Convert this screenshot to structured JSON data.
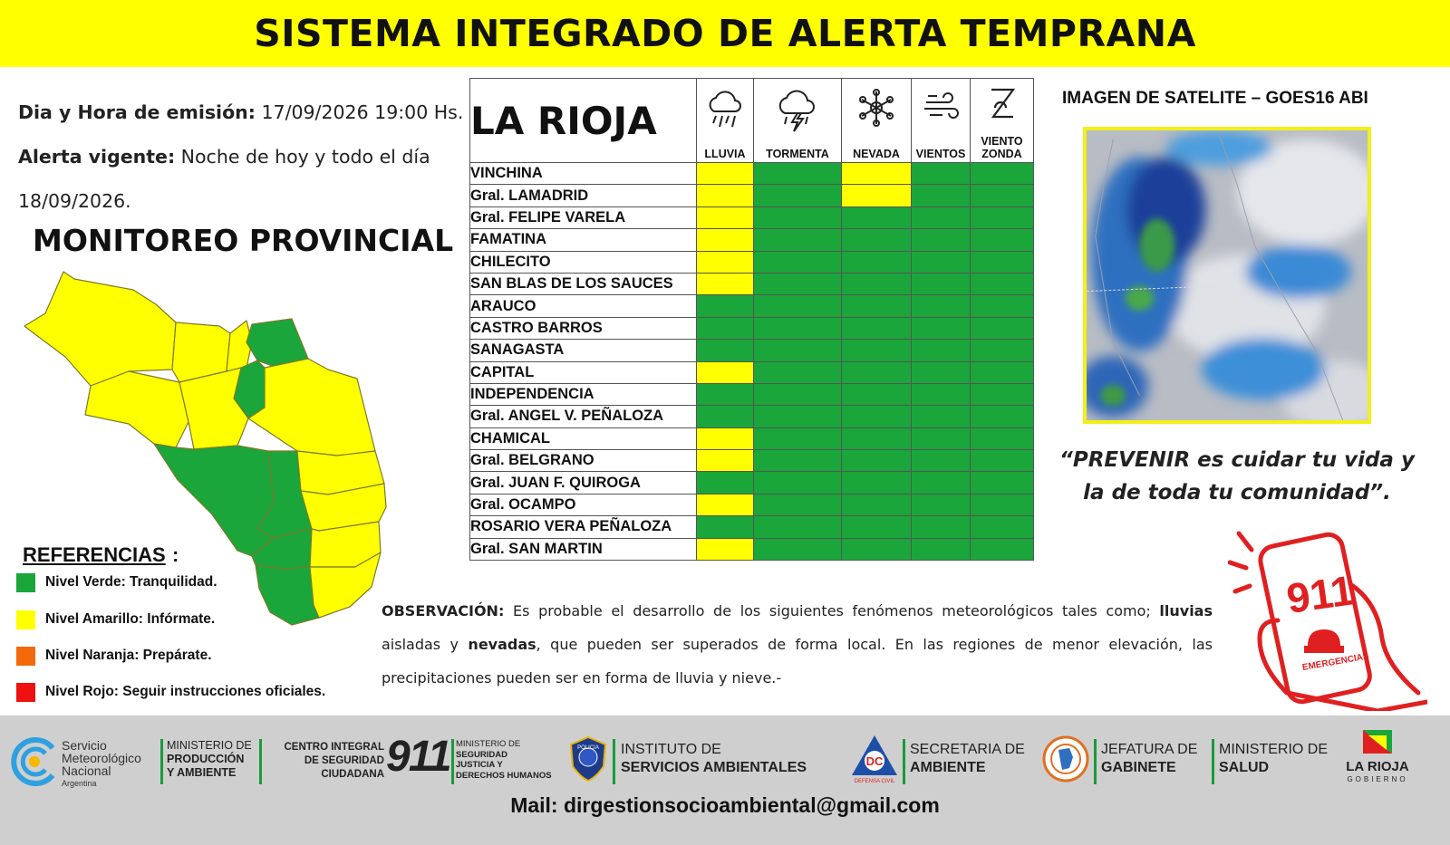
{
  "banner": {
    "title": "SISTEMA INTEGRADO DE ALERTA TEMPRANA"
  },
  "emision": {
    "date_label": "Dia y Hora de emisión:",
    "date_value": "17/09/2026  19:00 Hs.",
    "alert_label": "Alerta vigente:",
    "alert_value_1": "Noche de hoy y todo el día",
    "alert_value_2": "18/09/2026."
  },
  "monitor_title": "MONITOREO PROVINCIAL",
  "references": {
    "title": "REFERENCIAS",
    "colon": ":",
    "items": [
      {
        "label": "Nivel Verde: Tranquilidad.",
        "color": "#1aa63a"
      },
      {
        "label": "Nivel Amarillo: Infórmate.",
        "color": "#ffff00"
      },
      {
        "label": "Nivel Naranja: Prepárate.",
        "color": "#f26a0a"
      },
      {
        "label": "Nivel Rojo: Seguir instrucciones oficiales.",
        "color": "#ee1111"
      }
    ]
  },
  "table": {
    "province": "LA RIOJA",
    "columns": [
      {
        "label": "LLUVIA",
        "icon": "rain-cloud-icon"
      },
      {
        "label": "TORMENTA",
        "icon": "storm-cloud-icon"
      },
      {
        "label": "NEVADA",
        "icon": "snowflake-icon"
      },
      {
        "label": "VIENTOS",
        "icon": "wind-icon"
      },
      {
        "label": "VIENTO ZONDA",
        "icon": "zonda-icon",
        "label_1": "VIENTO",
        "label_2": "ZONDA"
      }
    ],
    "rows": [
      {
        "name": "VINCHINA",
        "levels": [
          "yellow",
          "green",
          "yellow",
          "green",
          "green"
        ]
      },
      {
        "name": "Gral. LAMADRID",
        "levels": [
          "yellow",
          "green",
          "yellow",
          "green",
          "green"
        ]
      },
      {
        "name": "Gral. FELIPE VARELA",
        "levels": [
          "yellow",
          "green",
          "green",
          "green",
          "green"
        ]
      },
      {
        "name": "FAMATINA",
        "levels": [
          "yellow",
          "green",
          "green",
          "green",
          "green"
        ]
      },
      {
        "name": "CHILECITO",
        "levels": [
          "yellow",
          "green",
          "green",
          "green",
          "green"
        ]
      },
      {
        "name": "SAN BLAS DE LOS SAUCES",
        "levels": [
          "yellow",
          "green",
          "green",
          "green",
          "green"
        ]
      },
      {
        "name": "ARAUCO",
        "levels": [
          "green",
          "green",
          "green",
          "green",
          "green"
        ]
      },
      {
        "name": "CASTRO BARROS",
        "levels": [
          "green",
          "green",
          "green",
          "green",
          "green"
        ]
      },
      {
        "name": "SANAGASTA",
        "levels": [
          "green",
          "green",
          "green",
          "green",
          "green"
        ]
      },
      {
        "name": "CAPITAL",
        "levels": [
          "yellow",
          "green",
          "green",
          "green",
          "green"
        ]
      },
      {
        "name": "INDEPENDENCIA",
        "levels": [
          "green",
          "green",
          "green",
          "green",
          "green"
        ]
      },
      {
        "name": "Gral. ANGEL V. PEÑALOZA",
        "levels": [
          "green",
          "green",
          "green",
          "green",
          "green"
        ]
      },
      {
        "name": "CHAMICAL",
        "levels": [
          "yellow",
          "green",
          "green",
          "green",
          "green"
        ]
      },
      {
        "name": "Gral. BELGRANO",
        "levels": [
          "yellow",
          "green",
          "green",
          "green",
          "green"
        ]
      },
      {
        "name": "Gral. JUAN F. QUIROGA",
        "levels": [
          "green",
          "green",
          "green",
          "green",
          "green"
        ]
      },
      {
        "name": "Gral. OCAMPO",
        "levels": [
          "yellow",
          "green",
          "green",
          "green",
          "green"
        ]
      },
      {
        "name": "ROSARIO VERA PEÑALOZA",
        "levels": [
          "green",
          "green",
          "green",
          "green",
          "green"
        ]
      },
      {
        "name": "Gral. SAN MARTIN",
        "levels": [
          "yellow",
          "green",
          "green",
          "green",
          "green"
        ]
      }
    ]
  },
  "satellite": {
    "title": "IMAGEN DE SATELITE – GOES16 ABI"
  },
  "quote": {
    "line1": "“PREVENIR es cuidar tu vida y",
    "line2": "la de toda tu comunidad”."
  },
  "observacion": {
    "label": "OBSERVACIÓN:",
    "text_1": " Es probable el desarrollo de los siguientes fenómenos meteorológicos tales como; ",
    "bold_1": "lluvias",
    "text_2": " aisladas y ",
    "bold_2": "nevadas",
    "text_3": ", que pueden ser superados de forma local. En las regiones de menor elevación, las precipitaciones pueden ser en forma de lluvia y nieve.-"
  },
  "badge_911": {
    "number": "911",
    "label": "EMERGENCIAS"
  },
  "footer": {
    "smn": [
      "Servicio",
      "Meteorológico",
      "Nacional",
      "Argentina"
    ],
    "min_prod": [
      "MINISTERIO DE",
      "PRODUCCIÓN",
      "Y AMBIENTE"
    ],
    "centro": [
      "CENTRO INTEGRAL",
      "DE SEGURIDAD",
      "CIUDADANA"
    ],
    "centro_num": "911",
    "min_seg": [
      "MINISTERIO DE",
      "SEGURIDAD",
      "JUSTICIA Y",
      "DERECHOS HUMANOS"
    ],
    "policia": "POLICIA",
    "instituto": [
      "INSTITUTO DE",
      "SERVICIOS AMBIENTALES"
    ],
    "dc": "DC",
    "dc_sub": "DEFENSA CIVIL",
    "secretaria": [
      "SECRETARIA DE",
      "AMBIENTE"
    ],
    "jefatura": [
      "JEFATURA DE",
      "GABINETE"
    ],
    "min_salud": [
      "MINISTERIO DE",
      "SALUD"
    ],
    "larioja": [
      "LA RIOJA",
      "GOBIERNO"
    ],
    "mail": "Mail: dirgestionsocioambiental@gmail.com"
  },
  "colors": {
    "green": "#1aa63a",
    "yellow": "#ffff00",
    "banner": "#ffff00"
  }
}
